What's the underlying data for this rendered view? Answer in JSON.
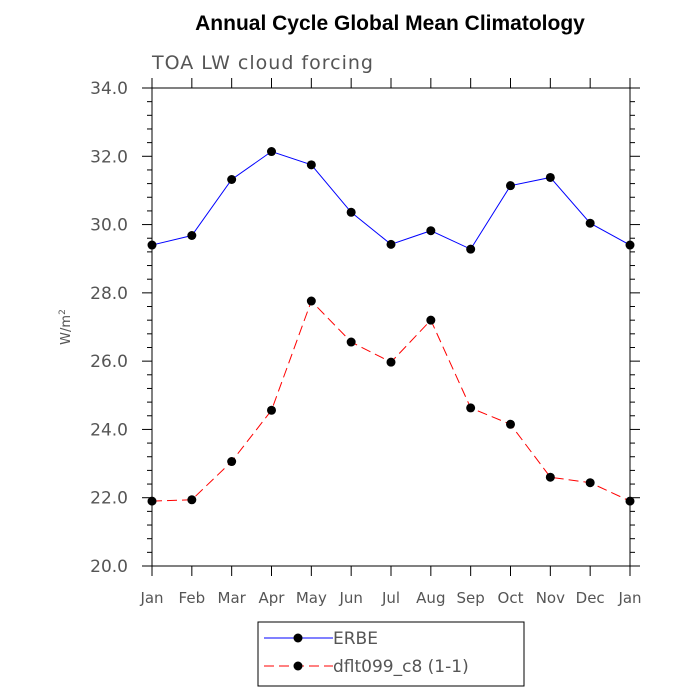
{
  "chart_data": {
    "type": "line",
    "title": "Annual Cycle Global Mean Climatology",
    "subtitle": "TOA LW cloud forcing",
    "ylabel": "W/m",
    "ylabel_superscript": "2",
    "xlabel": "",
    "categories": [
      "Jan",
      "Feb",
      "Mar",
      "Apr",
      "May",
      "Jun",
      "Jul",
      "Aug",
      "Sep",
      "Oct",
      "Nov",
      "Dec",
      "Jan"
    ],
    "ylim": [
      20.0,
      34.0
    ],
    "yticks": [
      "20.0",
      "22.0",
      "24.0",
      "26.0",
      "28.0",
      "30.0",
      "32.0",
      "34.0"
    ],
    "series": [
      {
        "name": "ERBE",
        "color": "#0000ff",
        "dash": "solid",
        "values": [
          29.4,
          29.68,
          31.32,
          32.14,
          31.75,
          30.36,
          29.42,
          29.82,
          29.28,
          31.14,
          31.38,
          30.04,
          29.4
        ]
      },
      {
        "name": "dflt099_c8 (1-1)",
        "color": "#ff0000",
        "dash": "dashed",
        "values": [
          21.9,
          21.94,
          23.06,
          24.56,
          27.76,
          26.56,
          25.97,
          27.2,
          24.63,
          24.15,
          22.6,
          22.44,
          21.9
        ]
      }
    ],
    "legend_position": "bottom-center"
  }
}
